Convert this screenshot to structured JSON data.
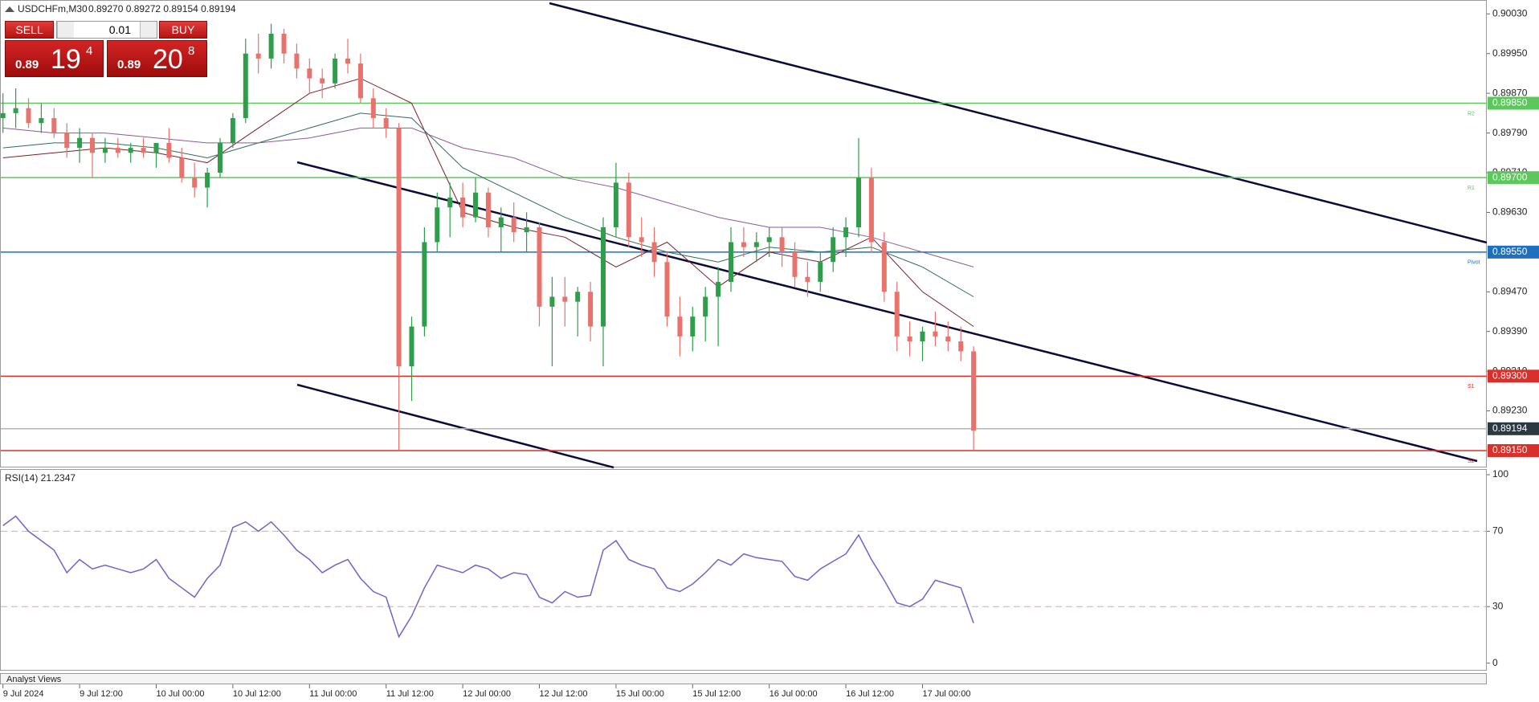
{
  "chart_data": [
    {
      "type": "candlestick",
      "title": "USDCHFm,M30",
      "quote": "0.89270 0.89272 0.89154 0.89194",
      "categories": [
        "9 Jul 00:00",
        "9 Jul 02:00",
        "9 Jul 04:00",
        "9 Jul 06:00",
        "9 Jul 08:00",
        "9 Jul 10:00",
        "9 Jul 12:00",
        "9 Jul 14:00",
        "9 Jul 16:00",
        "9 Jul 18:00",
        "9 Jul 20:00",
        "9 Jul 22:00",
        "10 Jul 00:00",
        "10 Jul 02:00",
        "10 Jul 04:00",
        "10 Jul 06:00",
        "10 Jul 08:00",
        "10 Jul 10:00",
        "10 Jul 12:00",
        "10 Jul 14:00",
        "10 Jul 16:00",
        "10 Jul 18:00",
        "10 Jul 20:00",
        "10 Jul 22:00",
        "11 Jul 00:00",
        "11 Jul 02:00",
        "11 Jul 04:00",
        "11 Jul 06:00",
        "11 Jul 08:00",
        "11 Jul 10:00",
        "11 Jul 12:00",
        "11 Jul 14:00",
        "11 Jul 16:00",
        "11 Jul 18:00",
        "11 Jul 20:00",
        "11 Jul 22:00",
        "12 Jul 00:00",
        "12 Jul 02:00",
        "12 Jul 04:00",
        "12 Jul 06:00",
        "12 Jul 08:00",
        "12 Jul 10:00",
        "12 Jul 12:00",
        "12 Jul 14:00",
        "12 Jul 16:00",
        "12 Jul 18:00",
        "12 Jul 20:00",
        "12 Jul 22:00",
        "15 Jul 00:00",
        "15 Jul 02:00",
        "15 Jul 04:00",
        "15 Jul 06:00",
        "15 Jul 08:00",
        "15 Jul 10:00",
        "15 Jul 12:00",
        "15 Jul 14:00",
        "15 Jul 16:00",
        "15 Jul 18:00",
        "15 Jul 20:00",
        "15 Jul 22:00",
        "16 Jul 00:00",
        "16 Jul 02:00",
        "16 Jul 04:00",
        "16 Jul 06:00",
        "16 Jul 08:00",
        "16 Jul 10:00",
        "16 Jul 12:00",
        "16 Jul 14:00",
        "16 Jul 16:00",
        "16 Jul 18:00",
        "16 Jul 20:00",
        "16 Jul 22:00",
        "17 Jul 00:00",
        "17 Jul 02:00",
        "17 Jul 04:00",
        "17 Jul 06:00",
        "17 Jul 08:00"
      ],
      "open": [
        0.8982,
        0.8983,
        0.8984,
        0.8981,
        0.8982,
        0.8979,
        0.8976,
        0.8978,
        0.8975,
        0.8976,
        0.8975,
        0.8976,
        0.8975,
        0.8977,
        0.8974,
        0.897,
        0.8968,
        0.8971,
        0.8977,
        0.8982,
        0.8995,
        0.8994,
        0.8999,
        0.8995,
        0.8992,
        0.899,
        0.8989,
        0.8994,
        0.8993,
        0.8986,
        0.8982,
        0.898,
        0.8932,
        0.894,
        0.8957,
        0.8964,
        0.8966,
        0.8962,
        0.8967,
        0.896,
        0.8962,
        0.8959,
        0.896,
        0.8944,
        0.8946,
        0.8945,
        0.8947,
        0.894,
        0.896,
        0.8969,
        0.8958,
        0.8957,
        0.8953,
        0.8942,
        0.8938,
        0.8942,
        0.8946,
        0.8949,
        0.8957,
        0.8956,
        0.8957,
        0.8958,
        0.8955,
        0.895,
        0.8949,
        0.8953,
        0.8958,
        0.896,
        0.897,
        0.8957,
        0.8947,
        0.8938,
        0.8937,
        0.8939,
        0.8938,
        0.8937,
        0.8935
      ],
      "high": [
        0.8987,
        0.8988,
        0.8986,
        0.8985,
        0.8984,
        0.8981,
        0.898,
        0.8979,
        0.8978,
        0.8978,
        0.8977,
        0.8978,
        0.8977,
        0.898,
        0.8976,
        0.8973,
        0.8972,
        0.8978,
        0.8983,
        0.8998,
        0.8999,
        0.9001,
        0.9,
        0.8997,
        0.8994,
        0.8992,
        0.8995,
        0.8998,
        0.8995,
        0.8988,
        0.8984,
        0.8981,
        0.8942,
        0.896,
        0.8967,
        0.8969,
        0.8969,
        0.897,
        0.8968,
        0.8964,
        0.8965,
        0.8963,
        0.8961,
        0.895,
        0.895,
        0.8948,
        0.8949,
        0.8962,
        0.8973,
        0.8971,
        0.8962,
        0.896,
        0.8955,
        0.8946,
        0.8944,
        0.8948,
        0.8952,
        0.896,
        0.896,
        0.8959,
        0.896,
        0.896,
        0.8957,
        0.8953,
        0.8955,
        0.896,
        0.8962,
        0.8978,
        0.8972,
        0.8959,
        0.8949,
        0.8941,
        0.894,
        0.8943,
        0.8941,
        0.894,
        0.8936
      ],
      "low": [
        0.8979,
        0.898,
        0.898,
        0.8979,
        0.8978,
        0.8974,
        0.8973,
        0.897,
        0.8973,
        0.8974,
        0.8973,
        0.8974,
        0.8972,
        0.8973,
        0.8969,
        0.8966,
        0.8964,
        0.897,
        0.8976,
        0.8981,
        0.8991,
        0.8992,
        0.8993,
        0.899,
        0.8987,
        0.8986,
        0.8988,
        0.8991,
        0.8985,
        0.898,
        0.8978,
        0.8915,
        0.8925,
        0.8938,
        0.8955,
        0.8958,
        0.896,
        0.8961,
        0.8958,
        0.8955,
        0.8957,
        0.8955,
        0.894,
        0.8932,
        0.894,
        0.8938,
        0.8937,
        0.8932,
        0.8958,
        0.8956,
        0.8954,
        0.895,
        0.894,
        0.8934,
        0.8935,
        0.8937,
        0.8936,
        0.8947,
        0.8954,
        0.8953,
        0.8954,
        0.8952,
        0.8948,
        0.8946,
        0.8947,
        0.8951,
        0.8954,
        0.8958,
        0.8955,
        0.8945,
        0.8935,
        0.8934,
        0.8933,
        0.8936,
        0.8935,
        0.8933,
        0.8915
      ],
      "close": [
        0.8983,
        0.8984,
        0.8981,
        0.8982,
        0.8979,
        0.8976,
        0.8978,
        0.8975,
        0.8976,
        0.8975,
        0.8976,
        0.8975,
        0.8977,
        0.8974,
        0.897,
        0.8968,
        0.8971,
        0.8977,
        0.8982,
        0.8995,
        0.8994,
        0.8999,
        0.8995,
        0.8992,
        0.899,
        0.8989,
        0.8994,
        0.8993,
        0.8986,
        0.8982,
        0.898,
        0.8932,
        0.894,
        0.8957,
        0.8964,
        0.8966,
        0.8962,
        0.8967,
        0.896,
        0.8962,
        0.8959,
        0.896,
        0.8944,
        0.8946,
        0.8945,
        0.8947,
        0.894,
        0.896,
        0.8969,
        0.8958,
        0.8957,
        0.8953,
        0.8942,
        0.8938,
        0.8942,
        0.8946,
        0.8949,
        0.8957,
        0.8956,
        0.8957,
        0.8958,
        0.8955,
        0.895,
        0.8949,
        0.8953,
        0.8958,
        0.896,
        0.897,
        0.8957,
        0.8947,
        0.8938,
        0.8937,
        0.8939,
        0.8938,
        0.8937,
        0.8935,
        0.8919
      ],
      "up_color": "#2e9e4a",
      "down_color": "#e8736c",
      "ylim": [
        0.89116,
        0.90058
      ],
      "yticks": [
        {
          "value": 0.9003,
          "label": "0.90030"
        },
        {
          "value": 0.8995,
          "label": "0.89950"
        },
        {
          "value": 0.8987,
          "label": "0.89870"
        },
        {
          "value": 0.8979,
          "label": "0.89790"
        },
        {
          "value": 0.8971,
          "label": "0.89710"
        },
        {
          "value": 0.8963,
          "label": "0.89630"
        },
        {
          "value": 0.8947,
          "label": "0.89470"
        },
        {
          "value": 0.8939,
          "label": "0.89390"
        },
        {
          "value": 0.8931,
          "label": "0.89310"
        },
        {
          "value": 0.8923,
          "label": "0.89230"
        }
      ],
      "xticks": [
        {
          "value": "9 Jul 00:00",
          "label": "9 Jul 2024"
        },
        "9 Jul 12:00",
        "10 Jul 00:00",
        "10 Jul 12:00",
        "11 Jul 00:00",
        "11 Jul 12:00",
        "12 Jul 00:00",
        "12 Jul 12:00",
        "15 Jul 00:00",
        "15 Jul 12:00",
        "16 Jul 00:00",
        "16 Jul 12:00",
        "17 Jul 00:00"
      ],
      "moving_averages": {
        "categories": [
          "9 Jul 00:00",
          "9 Jul 08:00",
          "9 Jul 16:00",
          "10 Jul 00:00",
          "10 Jul 08:00",
          "10 Jul 16:00",
          "11 Jul 00:00",
          "11 Jul 08:00",
          "11 Jul 16:00",
          "12 Jul 00:00",
          "12 Jul 08:00",
          "12 Jul 16:00",
          "15 Jul 00:00",
          "15 Jul 08:00",
          "15 Jul 16:00",
          "16 Jul 00:00",
          "16 Jul 08:00",
          "16 Jul 16:00",
          "17 Jul 00:00",
          "17 Jul 08:00"
        ],
        "series": [
          {
            "color": "#7a1f2a",
            "values": [
              0.8974,
              0.8975,
              0.8976,
              0.8975,
              0.8973,
              0.898,
              0.8987,
              0.899,
              0.8985,
              0.8963,
              0.896,
              0.8958,
              0.8952,
              0.8957,
              0.8948,
              0.8955,
              0.8953,
              0.8958,
              0.8947,
              0.894
            ]
          },
          {
            "color": "#2f6b5a",
            "values": [
              0.8976,
              0.8977,
              0.8977,
              0.8976,
              0.8974,
              0.8977,
              0.898,
              0.8983,
              0.8982,
              0.8972,
              0.8967,
              0.8962,
              0.8958,
              0.8955,
              0.8953,
              0.8956,
              0.8955,
              0.8956,
              0.8952,
              0.8946
            ]
          },
          {
            "color": "#8a5a9a",
            "values": [
              0.898,
              0.8979,
              0.8979,
              0.8978,
              0.8977,
              0.8977,
              0.8978,
              0.898,
              0.898,
              0.8976,
              0.8974,
              0.897,
              0.8968,
              0.8965,
              0.8962,
              0.896,
              0.896,
              0.8958,
              0.8955,
              0.8952
            ]
          }
        ]
      },
      "levels": [
        {
          "value": 0.8985,
          "label": "0.89850",
          "tag": "R2",
          "color": "#5cc85c",
          "box_color": "#5cc85c"
        },
        {
          "value": 0.897,
          "label": "0.89700",
          "tag": "R1",
          "color": "#5cc85c",
          "box_color": "#5cc85c"
        },
        {
          "value": 0.8955,
          "label": "0.89550",
          "tag": "Pivot",
          "color": "#1f6fc0",
          "box_color": "#1f6fc0"
        },
        {
          "value": 0.893,
          "label": "0.89300",
          "tag": "S1",
          "color": "#d9302c",
          "box_color": "#d9302c"
        },
        {
          "value": 0.89194,
          "label": "0.89194",
          "color": "#b5b5b5",
          "box_color": "#2b3a42"
        },
        {
          "value": 0.8915,
          "label": "0.89150",
          "tag": "S2",
          "color": "#d9302c",
          "box_color": "#d9302c"
        }
      ]
    },
    {
      "type": "line",
      "title": "RSI(14) 21.2347",
      "color": "#7462c8",
      "values": [
        73,
        78,
        70,
        65,
        60,
        48,
        55,
        50,
        52,
        50,
        48,
        50,
        55,
        45,
        40,
        35,
        45,
        52,
        72,
        75,
        70,
        75,
        68,
        60,
        55,
        48,
        52,
        55,
        45,
        38,
        35,
        14,
        25,
        40,
        52,
        50,
        48,
        52,
        50,
        45,
        48,
        47,
        35,
        32,
        38,
        35,
        36,
        60,
        65,
        55,
        52,
        50,
        40,
        38,
        42,
        48,
        55,
        52,
        58,
        56,
        55,
        54,
        46,
        44,
        50,
        54,
        58,
        68,
        55,
        44,
        32,
        30,
        34,
        44,
        42,
        40,
        21.2347
      ],
      "ylim": [
        -4,
        103
      ],
      "yticks": [
        100,
        70,
        30,
        0
      ],
      "dashed_levels": [
        70,
        30
      ]
    }
  ],
  "trade_panel": {
    "sell": "SELL",
    "buy": "BUY",
    "volume": "0.01",
    "bid": {
      "big": "0.89",
      "main": "19",
      "sup": "4"
    },
    "ask": {
      "big": "0.89",
      "main": "20",
      "sup": "8"
    }
  },
  "footer": "Analyst Views"
}
